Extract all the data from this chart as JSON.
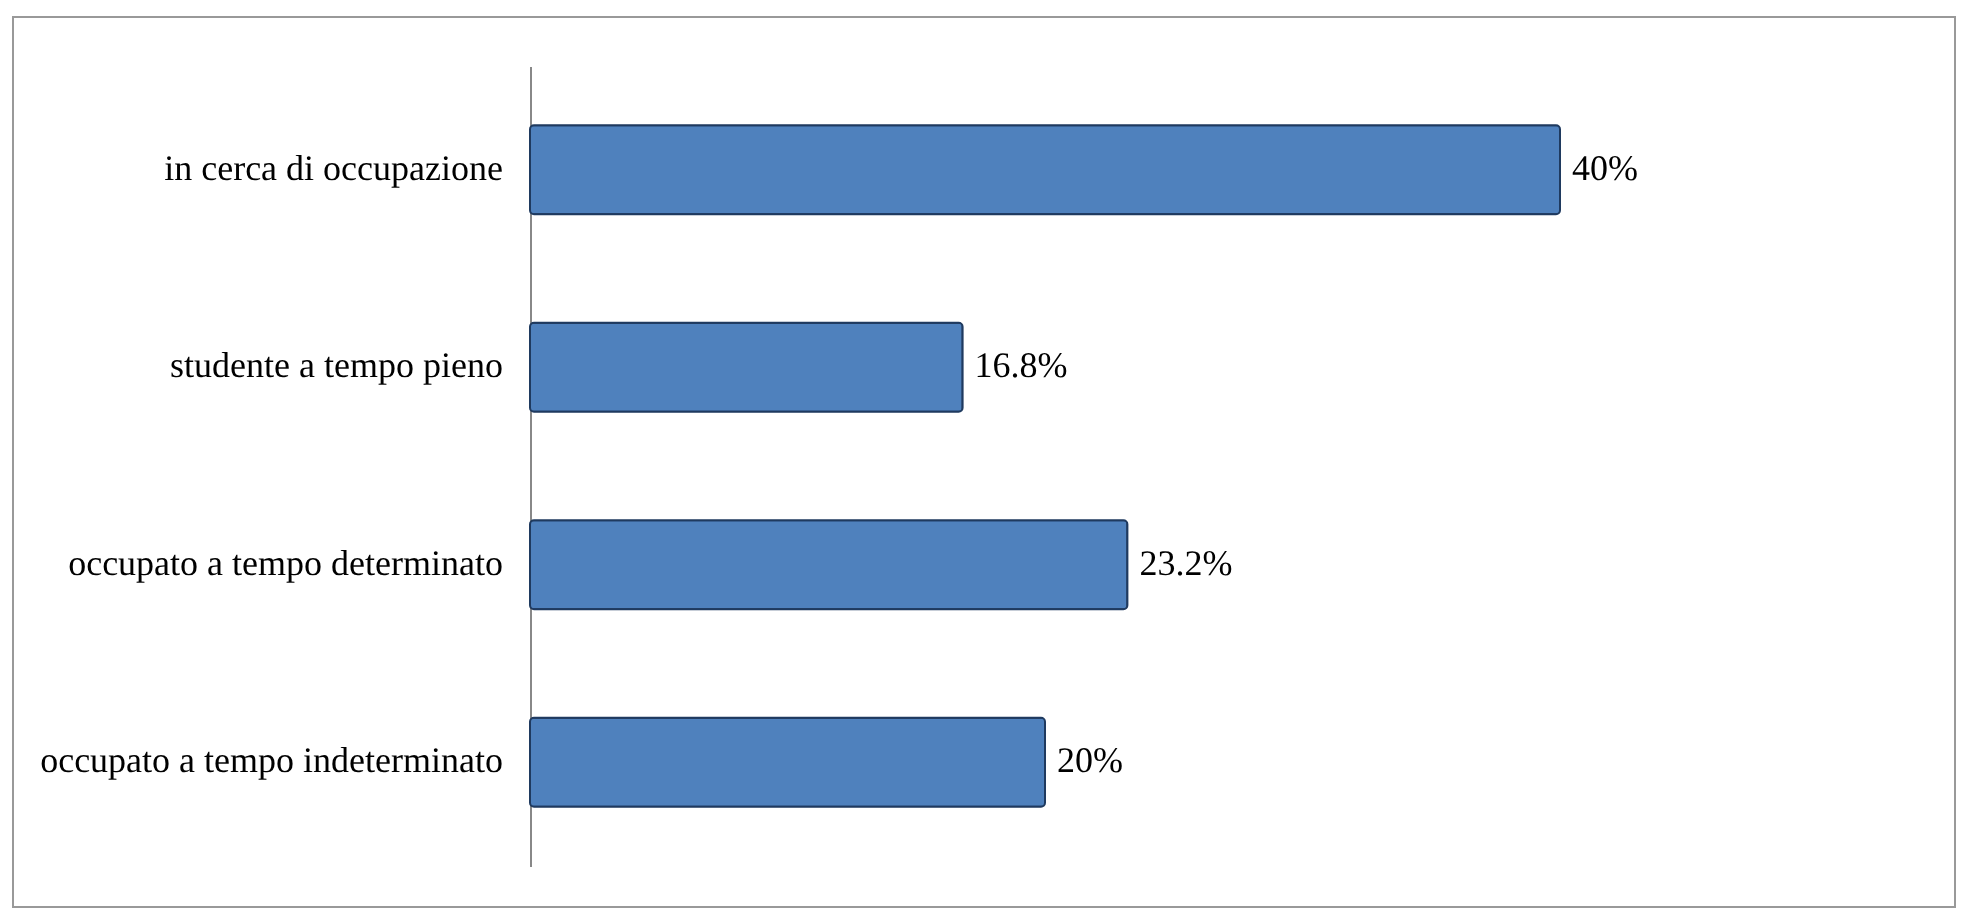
{
  "chart_data": {
    "type": "bar",
    "orientation": "horizontal",
    "categories": [
      "in cerca di occupazione",
      "studente a tempo pieno",
      "occupato a tempo determinato",
      "occupato a tempo indeterminato"
    ],
    "values": [
      40,
      16.8,
      23.2,
      20
    ],
    "value_labels": [
      "40%",
      "16.8%",
      "23.2%",
      "20%"
    ],
    "color": "#4f81bd"
  }
}
